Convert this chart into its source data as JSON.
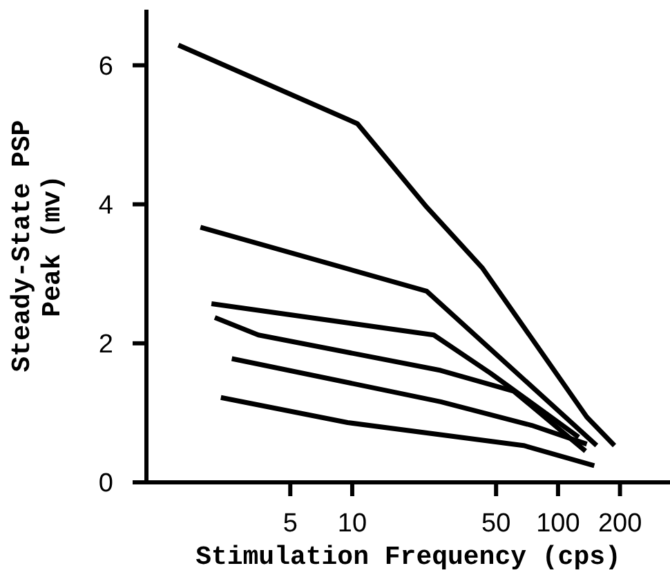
{
  "chart_data": {
    "type": "line",
    "xlabel": "Stimulation Frequency (cps)",
    "ylabel": "Steady-State PSP\nPeak (mv)",
    "log": "x",
    "xlim": [
      1,
      350
    ],
    "xticks": [
      5,
      10,
      50,
      100,
      200
    ],
    "ylim": [
      0,
      6.8
    ],
    "yticks": [
      0,
      2,
      4,
      6
    ],
    "grid": false,
    "legend": false,
    "series": [
      {
        "color": "#000000",
        "x": [
          1.43,
          10.6,
          23,
          43,
          138,
          188
        ],
        "values": [
          6.29,
          5.16,
          3.96,
          3.08,
          0.94,
          0.53
        ]
      },
      {
        "color": "#000000",
        "x": [
          1.83,
          23,
          154
        ],
        "values": [
          3.67,
          2.75,
          0.53
        ]
      },
      {
        "color": "#000000",
        "x": [
          2.07,
          24.9,
          47,
          126
        ],
        "values": [
          2.57,
          2.12,
          1.57,
          0.65
        ]
      },
      {
        "color": "#000000",
        "x": [
          2.15,
          3.5,
          26.9,
          61,
          136
        ],
        "values": [
          2.37,
          2.12,
          1.61,
          1.31,
          0.45
        ]
      },
      {
        "color": "#000000",
        "x": [
          2.6,
          26.9,
          74.5,
          138
        ],
        "values": [
          1.78,
          1.16,
          0.82,
          0.55
        ]
      },
      {
        "color": "#000000",
        "x": [
          2.3,
          9.5,
          68,
          150
        ],
        "values": [
          1.22,
          0.86,
          0.53,
          0.24
        ]
      }
    ]
  }
}
